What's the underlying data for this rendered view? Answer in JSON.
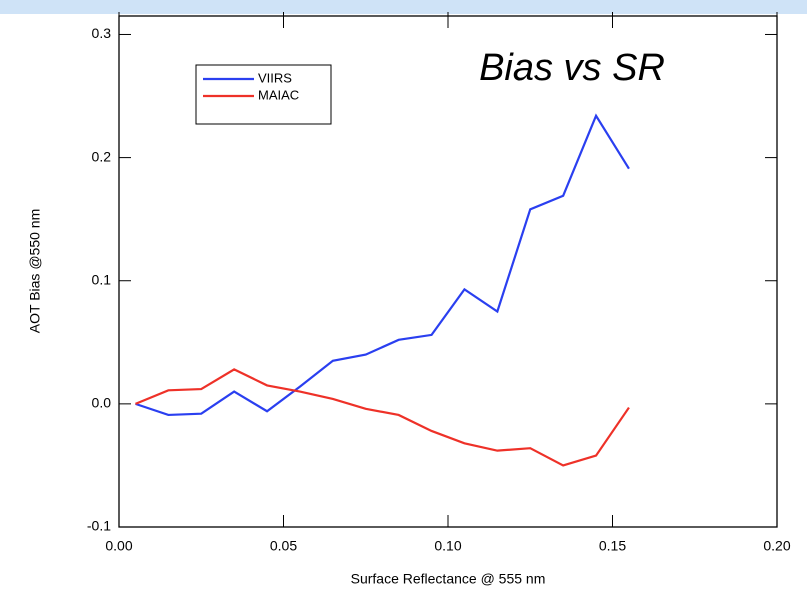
{
  "chart_data": {
    "type": "line",
    "annotation": "Bias vs SR",
    "x_label": "Surface Reflectance @ 555 nm",
    "y_label": "AOT Bias @550 nm",
    "x": [
      0.005,
      0.015,
      0.025,
      0.035,
      0.045,
      0.055,
      0.065,
      0.075,
      0.085,
      0.095,
      0.105,
      0.115,
      0.125,
      0.135,
      0.145,
      0.155
    ],
    "series": [
      {
        "name": "VIIRS",
        "color": "#2a3ff0",
        "values": [
          0,
          -0.009,
          -0.008,
          0.01,
          -0.006,
          0.014,
          0.035,
          0.04,
          0.052,
          0.056,
          0.093,
          0.075,
          0.158,
          0.169,
          0.234,
          0.191
        ]
      },
      {
        "name": "MAIAC",
        "color": "#ee3128",
        "values": [
          0,
          0.011,
          0.012,
          0.028,
          0.015,
          0.01,
          0.004,
          -0.004,
          -0.009,
          -0.022,
          -0.032,
          -0.038,
          -0.036,
          -0.05,
          -0.042,
          -0.003
        ]
      }
    ],
    "xlim": [
      0,
      0.2
    ],
    "xticks": [
      {
        "value": 0,
        "label": "0.00"
      },
      0.05,
      {
        "value": 0.1,
        "label": "0.10"
      },
      0.15,
      {
        "value": 0.2,
        "label": "0.20"
      }
    ],
    "ylim": [
      -0.1,
      0.315
    ],
    "yticks": [
      -0.1,
      {
        "value": 0,
        "label": "0.0"
      },
      0.1,
      0.2,
      0.3
    ],
    "legend": "upper left"
  }
}
